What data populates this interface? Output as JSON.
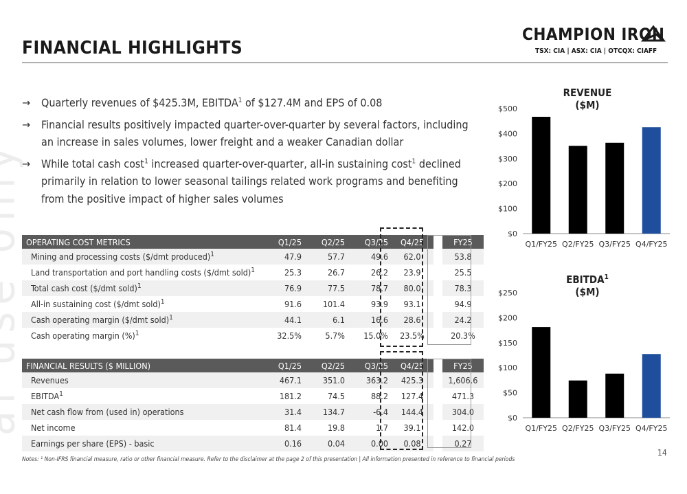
{
  "header": {
    "title": "FINANCIAL HIGHLIGHTS",
    "brand": "CHAMPION IRON",
    "ticker": "TSX: CIA | ASX: CIA | OTCQX: CIAFF",
    "logo_icon": "triangle-mountain-icon"
  },
  "watermark": "al use only",
  "bullets": [
    {
      "pre": "Quarterly revenues of $425.3M, EBITDA",
      "sup": "1",
      "post": " of $127.4M and EPS of 0.08"
    },
    {
      "pre": "Financial results positively impacted quarter-over-quarter by several factors, including an increase in sales volumes, lower freight and a weaker Canadian dollar",
      "sup": "",
      "post": ""
    },
    {
      "pre": "While total cash cost",
      "sup": "1",
      "mid": " increased quarter-over-quarter, all-in sustaining cost",
      "sup2": "1",
      "post": " declined primarily in relation to lower seasonal tailings related work programs and benefiting from the positive impact of higher sales volumes"
    }
  ],
  "arrow_glyph": "→",
  "operating_table": {
    "headers": [
      "OPERATING COST METRICS",
      "Q1/25",
      "Q2/25",
      "Q3/25",
      "Q4/25",
      "FY25"
    ],
    "rows": [
      {
        "label": "Mining and processing costs ($/dmt produced)",
        "sup": "1",
        "values": [
          "47.9",
          "57.7",
          "49.6",
          "62.0",
          "53.8"
        ]
      },
      {
        "label": "Land transportation and port handling costs ($/dmt sold)",
        "sup": "1",
        "values": [
          "25.3",
          "26.7",
          "26.2",
          "23.9",
          "25.5"
        ]
      },
      {
        "label": "Total cash cost ($/dmt sold)",
        "sup": "1",
        "values": [
          "76.9",
          "77.5",
          "78.7",
          "80.0",
          "78.3"
        ]
      },
      {
        "label": "All-in sustaining cost ($/dmt sold)",
        "sup": "1",
        "values": [
          "91.6",
          "101.4",
          "93.9",
          "93.1",
          "94.9"
        ]
      },
      {
        "label": "Cash operating margin ($/dmt sold)",
        "sup": "1",
        "values": [
          "44.1",
          "6.1",
          "16.6",
          "28.6",
          "24.2"
        ]
      },
      {
        "label": "Cash operating margin (%)",
        "sup": "1",
        "values": [
          "32.5%",
          "5.7%",
          "15.0%",
          "23.5%",
          "20.3%"
        ]
      }
    ]
  },
  "financial_table": {
    "headers": [
      "FINANCIAL RESULTS ($ MILLION)",
      "Q1/25",
      "Q2/25",
      "Q3/25",
      "Q4/25",
      "FY25"
    ],
    "rows": [
      {
        "label": "Revenues",
        "sup": "",
        "values": [
          "467.1",
          "351.0",
          "363.2",
          "425.3",
          "1,606.6"
        ]
      },
      {
        "label": "EBITDA",
        "sup": "1",
        "values": [
          "181.2",
          "74.5",
          "88.2",
          "127.4",
          "471.3"
        ]
      },
      {
        "label": "Net cash flow from (used in) operations",
        "sup": "",
        "values": [
          "31.4",
          "134.7",
          "-6.4",
          "144.4",
          "304.0"
        ]
      },
      {
        "label": "Net income",
        "sup": "",
        "values": [
          "81.4",
          "19.8",
          "1.7",
          "39.1",
          "142.0"
        ]
      },
      {
        "label": "Earnings per share (EPS) - basic",
        "sup": "",
        "values": [
          "0.16",
          "0.04",
          "0.00",
          "0.08",
          "0.27"
        ]
      }
    ]
  },
  "colors": {
    "bar": "#000000",
    "highlight": "#1f4e9c",
    "header_bg": "#5a5a5a"
  },
  "chart_data": [
    {
      "type": "bar",
      "title": "REVENUE",
      "title_sup": "",
      "subtitle": "($M)",
      "categories": [
        "Q1/FY25",
        "Q2/FY25",
        "Q3/FY25",
        "Q4/FY25"
      ],
      "values": [
        467.1,
        351.0,
        363.2,
        425.3
      ],
      "ylim": [
        0,
        500
      ],
      "yticks": [
        0,
        100,
        200,
        300,
        400,
        500
      ],
      "ytick_labels": [
        "$0",
        "$100",
        "$200",
        "$300",
        "$400",
        "$500"
      ],
      "highlight_index": 3,
      "grid": false,
      "legend": "none"
    },
    {
      "type": "bar",
      "title": "EBITDA",
      "title_sup": "1",
      "subtitle": "($M)",
      "categories": [
        "Q1/FY25",
        "Q2/FY25",
        "Q3/FY25",
        "Q4/FY25"
      ],
      "values": [
        181.2,
        74.5,
        88.2,
        127.4
      ],
      "ylim": [
        0,
        250
      ],
      "yticks": [
        0,
        50,
        100,
        150,
        200,
        250
      ],
      "ytick_labels": [
        "$0",
        "$50",
        "$100",
        "$150",
        "$200",
        "$250"
      ],
      "highlight_index": 3,
      "grid": false,
      "legend": "none"
    }
  ],
  "footnote": "Notes: ¹ Non-IFRS financial measure, ratio or other financial measure. Refer to the disclaimer at the page 2 of this presentation | All information presented in reference to financial periods",
  "page_number": "14"
}
